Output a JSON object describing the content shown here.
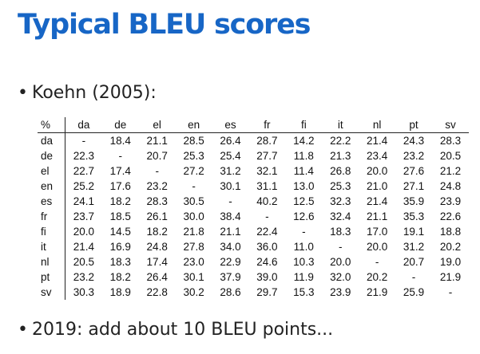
{
  "title": "Typical BLEU scores",
  "bullets": {
    "first": "Koehn (2005):",
    "second": "2019: add about 10 BLEU points..."
  },
  "bullet_glyph": "•",
  "colors": {
    "title": "#1766c6",
    "text": "#222222"
  },
  "table": {
    "corner": "%",
    "columns": [
      "da",
      "de",
      "el",
      "en",
      "es",
      "fr",
      "fi",
      "it",
      "nl",
      "pt",
      "sv"
    ],
    "rows": [
      {
        "label": "da",
        "cells": [
          "-",
          "18.4",
          "21.1",
          "28.5",
          "26.4",
          "28.7",
          "14.2",
          "22.2",
          "21.4",
          "24.3",
          "28.3"
        ]
      },
      {
        "label": "de",
        "cells": [
          "22.3",
          "-",
          "20.7",
          "25.3",
          "25.4",
          "27.7",
          "11.8",
          "21.3",
          "23.4",
          "23.2",
          "20.5"
        ]
      },
      {
        "label": "el",
        "cells": [
          "22.7",
          "17.4",
          "-",
          "27.2",
          "31.2",
          "32.1",
          "11.4",
          "26.8",
          "20.0",
          "27.6",
          "21.2"
        ]
      },
      {
        "label": "en",
        "cells": [
          "25.2",
          "17.6",
          "23.2",
          "-",
          "30.1",
          "31.1",
          "13.0",
          "25.3",
          "21.0",
          "27.1",
          "24.8"
        ]
      },
      {
        "label": "es",
        "cells": [
          "24.1",
          "18.2",
          "28.3",
          "30.5",
          "-",
          "40.2",
          "12.5",
          "32.3",
          "21.4",
          "35.9",
          "23.9"
        ]
      },
      {
        "label": "fr",
        "cells": [
          "23.7",
          "18.5",
          "26.1",
          "30.0",
          "38.4",
          "-",
          "12.6",
          "32.4",
          "21.1",
          "35.3",
          "22.6"
        ]
      },
      {
        "label": "fi",
        "cells": [
          "20.0",
          "14.5",
          "18.2",
          "21.8",
          "21.1",
          "22.4",
          "-",
          "18.3",
          "17.0",
          "19.1",
          "18.8"
        ]
      },
      {
        "label": "it",
        "cells": [
          "21.4",
          "16.9",
          "24.8",
          "27.8",
          "34.0",
          "36.0",
          "11.0",
          "-",
          "20.0",
          "31.2",
          "20.2"
        ]
      },
      {
        "label": "nl",
        "cells": [
          "20.5",
          "18.3",
          "17.4",
          "23.0",
          "22.9",
          "24.6",
          "10.3",
          "20.0",
          "-",
          "20.7",
          "19.0"
        ]
      },
      {
        "label": "pt",
        "cells": [
          "23.2",
          "18.2",
          "26.4",
          "30.1",
          "37.9",
          "39.0",
          "11.9",
          "32.0",
          "20.2",
          "-",
          "21.9"
        ]
      },
      {
        "label": "sv",
        "cells": [
          "30.3",
          "18.9",
          "22.8",
          "30.2",
          "28.6",
          "29.7",
          "15.3",
          "23.9",
          "21.9",
          "25.9",
          "-"
        ]
      }
    ]
  }
}
